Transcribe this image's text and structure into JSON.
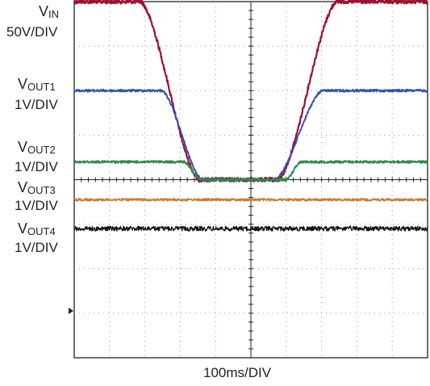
{
  "chart_data": {
    "type": "line",
    "xlabel": "100ms/DIV",
    "x_divisions": 10,
    "y_divisions": 8,
    "grid": true,
    "colors": {
      "VIN": "#a01030",
      "VOUT1": "#3050b0",
      "VOUT2": "#2a8a4a",
      "VOUT3": "#cc7a30",
      "VOUT4": "#111111"
    },
    "series": [
      {
        "name": "VIN",
        "label_main": "V",
        "label_sub": "IN",
        "scale": "50V/DIV",
        "offset_div": 4.0,
        "t_div": [
          0,
          1.9,
          3.5,
          5.8,
          7.4,
          10
        ],
        "level_div": [
          4.0,
          4.0,
          0.0,
          0.0,
          4.0,
          4.0
        ]
      },
      {
        "name": "VOUT1",
        "label_main": "V",
        "label_sub": "OUT1",
        "scale": "1V/DIV",
        "offset_div": 2.0,
        "t_div": [
          0,
          2.5,
          3.6,
          5.7,
          7.0,
          10
        ],
        "level_div": [
          2.0,
          2.0,
          0.0,
          0.0,
          2.0,
          2.0
        ]
      },
      {
        "name": "VOUT2",
        "label_main": "V",
        "label_sub": "OUT2",
        "scale": "1V/DIV",
        "offset_div": 0.4,
        "t_div": [
          0,
          3.1,
          3.6,
          6.0,
          6.4,
          10
        ],
        "level_div": [
          0.4,
          0.4,
          0.0,
          0.0,
          0.4,
          0.4
        ]
      },
      {
        "name": "VOUT3",
        "label_main": "V",
        "label_sub": "OUT3",
        "scale": "1V/DIV",
        "offset_div": -0.45,
        "t_div": [
          0,
          10
        ],
        "level_div": [
          -0.45,
          -0.45
        ]
      },
      {
        "name": "VOUT4",
        "label_main": "V",
        "label_sub": "OUT4",
        "scale": "1V/DIV",
        "offset_div": -1.1,
        "t_div": [
          0,
          10
        ],
        "level_div": [
          -1.1,
          -1.1
        ]
      }
    ]
  }
}
